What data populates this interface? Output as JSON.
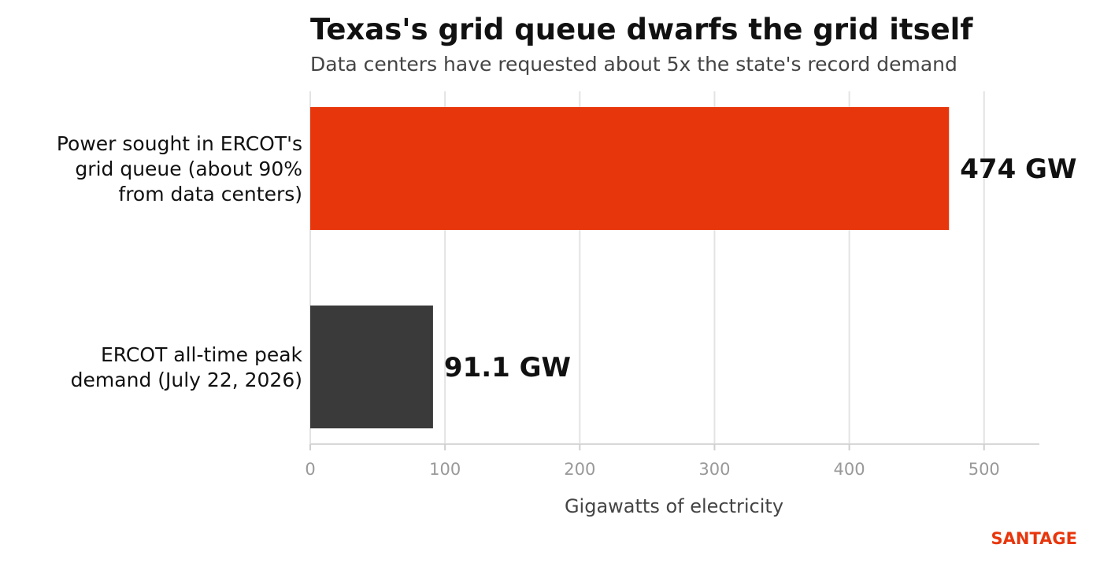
{
  "chart_data": {
    "type": "bar",
    "orientation": "horizontal",
    "title": "Texas's grid queue dwarfs the grid itself",
    "subtitle": "Data centers have requested about 5x the state's record demand",
    "xlabel": "Gigawatts of electricity",
    "ylabel": "",
    "xlim": [
      0,
      540
    ],
    "xticks": [
      "0",
      "100",
      "200",
      "300",
      "400",
      "500"
    ],
    "grid": true,
    "categories": [
      [
        "Power sought in ERCOT's",
        "grid queue (about 90%",
        "from data centers)"
      ],
      [
        "ERCOT all-time peak",
        "demand (July 22, 2026)"
      ]
    ],
    "values": [
      474,
      91.1
    ],
    "value_labels": [
      "474 GW",
      "91.1 GW"
    ],
    "colors": [
      "#e8360c",
      "#3a3a3a"
    ]
  },
  "brand": {
    "text": "SANTAGE",
    "color": "#e8360c"
  }
}
